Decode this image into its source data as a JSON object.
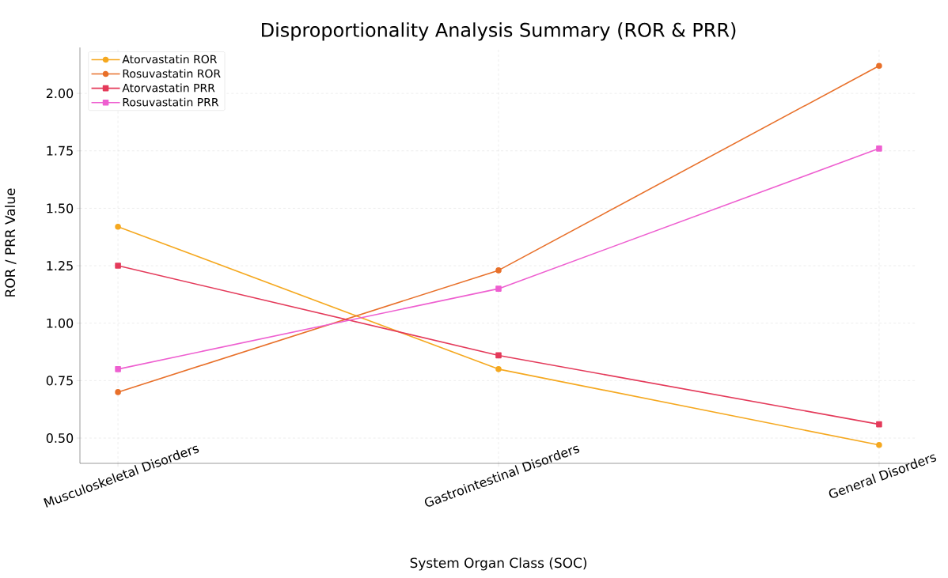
{
  "chart_data": {
    "type": "line",
    "title": "Disproportionality Analysis Summary (ROR & PRR)",
    "xlabel": "System Organ Class (SOC)",
    "ylabel": "ROR / PRR Value",
    "categories": [
      "Musculoskeletal Disorders",
      "Gastrointestinal Disorders",
      "General Disorders"
    ],
    "series": [
      {
        "name": "Atorvastatin ROR",
        "color": "#f5a81f",
        "marker": "circle",
        "values": [
          1.42,
          0.8,
          0.47
        ]
      },
      {
        "name": "Rosuvastatin ROR",
        "color": "#e8702a",
        "marker": "circle",
        "values": [
          0.7,
          1.23,
          2.12
        ]
      },
      {
        "name": "Atorvastatin PRR",
        "color": "#e43a5a",
        "marker": "square",
        "values": [
          1.25,
          0.86,
          0.56
        ]
      },
      {
        "name": "Rosuvastatin PRR",
        "color": "#ee5fd0",
        "marker": "square",
        "values": [
          0.8,
          1.15,
          1.76
        ]
      }
    ],
    "ylim": [
      0.39,
      2.2
    ],
    "yticks": [
      {
        "value": 0.5,
        "label": "0.50"
      },
      {
        "value": 0.75,
        "label": "0.75"
      },
      {
        "value": 1.0,
        "label": "1.00"
      },
      {
        "value": 1.25,
        "label": "1.25"
      },
      {
        "value": 1.5,
        "label": "1.50"
      },
      {
        "value": 1.75,
        "label": "1.75"
      },
      {
        "value": 2.0,
        "label": "2.00"
      }
    ],
    "grid": true,
    "legend": "top left",
    "line_style": "solid"
  }
}
